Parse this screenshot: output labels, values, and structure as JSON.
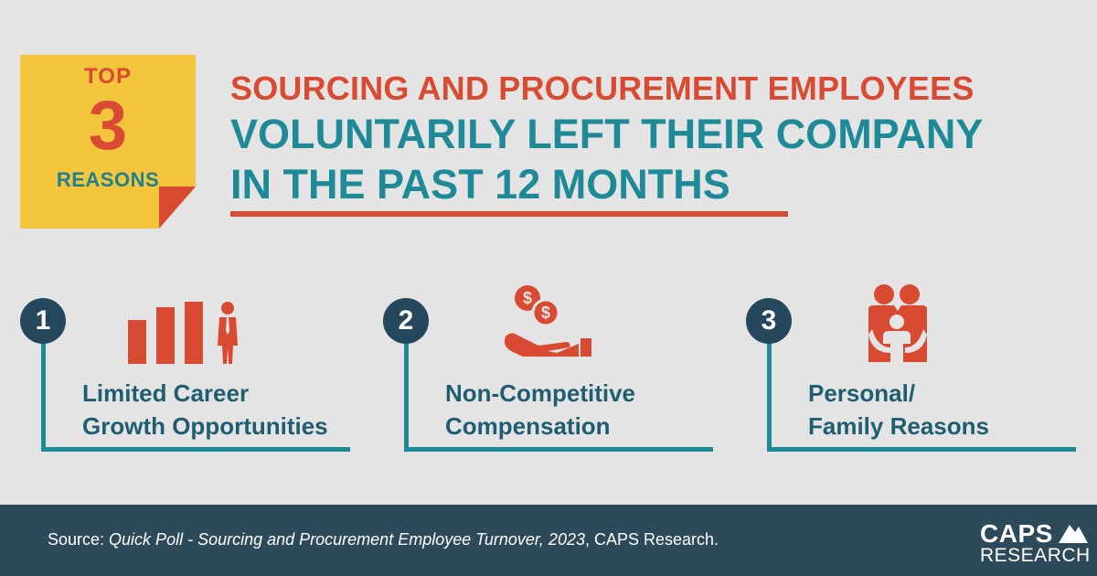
{
  "badge": {
    "top": "TOP",
    "number": "3",
    "reasons": "REASONS"
  },
  "headline": {
    "line1": "SOURCING AND PROCUREMENT EMPLOYEES",
    "line2": "VOLUNTARILY LEFT THEIR COMPANY",
    "line3": "IN THE PAST 12 MONTHS"
  },
  "reasons": [
    {
      "number": "1",
      "line1": "Limited Career",
      "line2": "Growth Opportunities",
      "icon": "career-chart-icon"
    },
    {
      "number": "2",
      "line1": "Non-Competitive",
      "line2": "Compensation",
      "icon": "money-hand-icon"
    },
    {
      "number": "3",
      "line1": "Personal/",
      "line2": "Family Reasons",
      "icon": "family-icon"
    }
  ],
  "footer": {
    "source_prefix": "Source: ",
    "source_title": "Quick Poll - Sourcing and Procurement Employee Turnover, 2023",
    "source_suffix": ", CAPS Research.",
    "logo_top": "CAPS",
    "logo_bottom": "RESEARCH"
  },
  "colors": {
    "background": "#e4e4e4",
    "red": "#d94a32",
    "teal": "#1f8a97",
    "yellow": "#f2c53d",
    "navy": "#2d4a5a"
  }
}
